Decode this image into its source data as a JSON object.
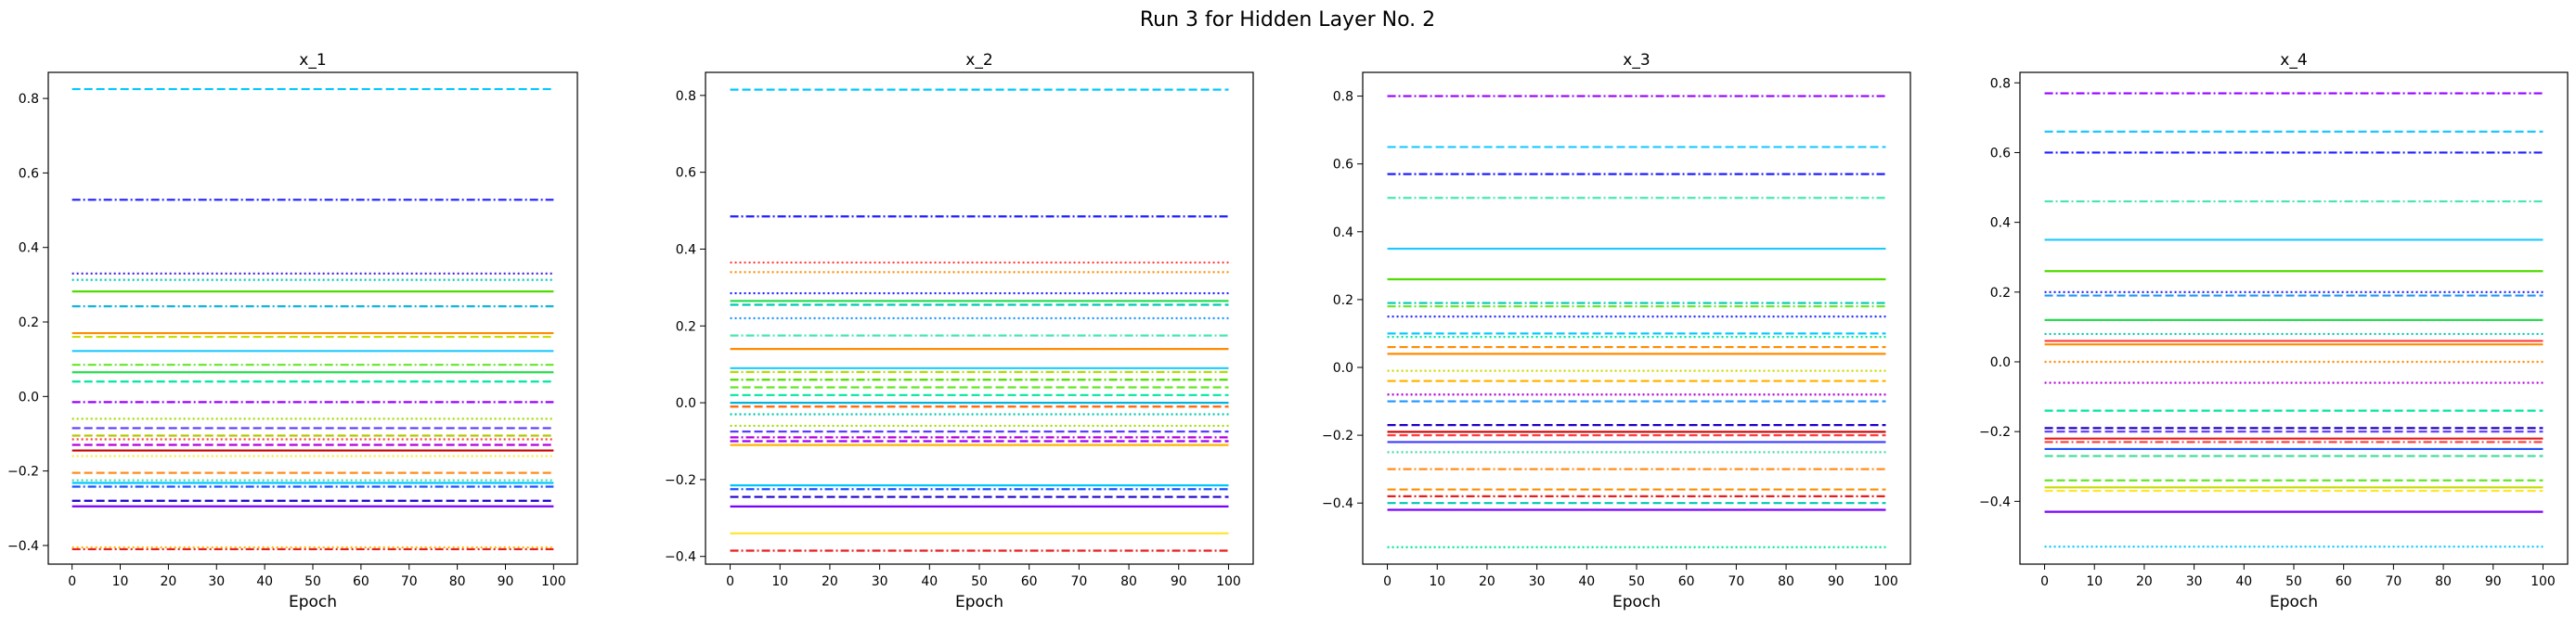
{
  "figure": {
    "title": "Run 3 for Hidden Layer No. 2"
  },
  "chart_data": [
    {
      "type": "line",
      "title": "x_1",
      "xlabel": "Epoch",
      "ylabel": "",
      "xlim": [
        0,
        100
      ],
      "ylim": [
        -0.45,
        0.87
      ],
      "x_ticks": [
        0,
        10,
        20,
        30,
        40,
        50,
        60,
        70,
        80,
        90,
        100
      ],
      "y_ticks": [
        -0.4,
        -0.2,
        0.0,
        0.2,
        0.4,
        0.6,
        0.8
      ],
      "y_tick_labels": [
        "−0.4",
        "−0.2",
        "0.0",
        "0.2",
        "0.4",
        "0.6",
        "0.8"
      ],
      "grid": false,
      "series": [
        {
          "value": 0.825,
          "color": "#00c8ff",
          "style": "dashed"
        },
        {
          "value": 0.528,
          "color": "#1e1eff",
          "style": "dashdot"
        },
        {
          "value": 0.33,
          "color": "#3c1edc",
          "style": "dotted"
        },
        {
          "value": 0.313,
          "color": "#00c8b4",
          "style": "dotted"
        },
        {
          "value": 0.282,
          "color": "#50dc00",
          "style": "solid"
        },
        {
          "value": 0.242,
          "color": "#14b4dc",
          "style": "dashdot"
        },
        {
          "value": 0.17,
          "color": "#ff8c00",
          "style": "solid"
        },
        {
          "value": 0.16,
          "color": "#c8dc00",
          "style": "dashed"
        },
        {
          "value": 0.122,
          "color": "#1ec8ff",
          "style": "solid"
        },
        {
          "value": 0.085,
          "color": "#64e628",
          "style": "dashdot"
        },
        {
          "value": 0.065,
          "color": "#28dc50",
          "style": "solid"
        },
        {
          "value": 0.04,
          "color": "#00e6a0",
          "style": "dashed"
        },
        {
          "value": -0.015,
          "color": "#9600ff",
          "style": "dashdot"
        },
        {
          "value": -0.06,
          "color": "#a0dc00",
          "style": "dotted"
        },
        {
          "value": -0.085,
          "color": "#5a3cff",
          "style": "dashed"
        },
        {
          "value": -0.105,
          "color": "#b4c800",
          "style": "dashed"
        },
        {
          "value": -0.115,
          "color": "#ff3c3c",
          "style": "dotted"
        },
        {
          "value": -0.13,
          "color": "#b400dc",
          "style": "dashed"
        },
        {
          "value": -0.145,
          "color": "#c80000",
          "style": "solid"
        },
        {
          "value": -0.16,
          "color": "#ffe632",
          "style": "dotted"
        },
        {
          "value": -0.205,
          "color": "#ff8c1e",
          "style": "dashed"
        },
        {
          "value": -0.225,
          "color": "#46dca0",
          "style": "dotted"
        },
        {
          "value": -0.232,
          "color": "#00c8ff",
          "style": "solid"
        },
        {
          "value": -0.242,
          "color": "#1e50ff",
          "style": "dashdot"
        },
        {
          "value": -0.28,
          "color": "#1e00c8",
          "style": "dashed"
        },
        {
          "value": -0.295,
          "color": "#7800ff",
          "style": "solid"
        },
        {
          "value": -0.41,
          "color": "#e61e1e",
          "style": "dashdot"
        },
        {
          "value": -0.405,
          "color": "#ffb400",
          "style": "dotted"
        }
      ]
    },
    {
      "type": "line",
      "title": "x_2",
      "xlabel": "Epoch",
      "ylabel": "",
      "xlim": [
        0,
        100
      ],
      "ylim": [
        -0.42,
        0.86
      ],
      "x_ticks": [
        0,
        10,
        20,
        30,
        40,
        50,
        60,
        70,
        80,
        90,
        100
      ],
      "y_ticks": [
        -0.4,
        -0.2,
        0.0,
        0.2,
        0.4,
        0.6,
        0.8
      ],
      "y_tick_labels": [
        "−0.4",
        "−0.2",
        "0.0",
        "0.2",
        "0.4",
        "0.6",
        "0.8"
      ],
      "grid": false,
      "series": [
        {
          "value": 0.815,
          "color": "#00c8ff",
          "style": "dashed"
        },
        {
          "value": 0.485,
          "color": "#1e1eff",
          "style": "dashdot"
        },
        {
          "value": 0.365,
          "color": "#ff3c3c",
          "style": "dotted"
        },
        {
          "value": 0.34,
          "color": "#ff8c00",
          "style": "dotted"
        },
        {
          "value": 0.285,
          "color": "#1e1eff",
          "style": "dotted"
        },
        {
          "value": 0.265,
          "color": "#28dc50",
          "style": "solid"
        },
        {
          "value": 0.255,
          "color": "#00c8b4",
          "style": "dashed"
        },
        {
          "value": 0.22,
          "color": "#1e96ff",
          "style": "dotted"
        },
        {
          "value": 0.175,
          "color": "#46e6b4",
          "style": "dashdot"
        },
        {
          "value": 0.14,
          "color": "#ff8c00",
          "style": "solid"
        },
        {
          "value": 0.09,
          "color": "#1ec8ff",
          "style": "solid"
        },
        {
          "value": 0.08,
          "color": "#b4dc00",
          "style": "dashdot"
        },
        {
          "value": 0.06,
          "color": "#50dc00",
          "style": "dashdot"
        },
        {
          "value": 0.04,
          "color": "#64e628",
          "style": "dashed"
        },
        {
          "value": 0.02,
          "color": "#00e6a0",
          "style": "dashed"
        },
        {
          "value": 0.0,
          "color": "#00b4dc",
          "style": "solid"
        },
        {
          "value": -0.01,
          "color": "#ff6400",
          "style": "dashed"
        },
        {
          "value": -0.03,
          "color": "#00c8b4",
          "style": "dotted"
        },
        {
          "value": -0.06,
          "color": "#a0dc00",
          "style": "dotted"
        },
        {
          "value": -0.075,
          "color": "#5a3cff",
          "style": "dashed"
        },
        {
          "value": -0.09,
          "color": "#b400dc",
          "style": "dashdot"
        },
        {
          "value": -0.1,
          "color": "#9600ff",
          "style": "dashed"
        },
        {
          "value": -0.11,
          "color": "#ffb400",
          "style": "solid"
        },
        {
          "value": -0.215,
          "color": "#00c8ff",
          "style": "solid"
        },
        {
          "value": -0.225,
          "color": "#1e50ff",
          "style": "dashdot"
        },
        {
          "value": -0.245,
          "color": "#1e00c8",
          "style": "dashed"
        },
        {
          "value": -0.27,
          "color": "#7800ff",
          "style": "solid"
        },
        {
          "value": -0.34,
          "color": "#ffe632",
          "style": "solid"
        },
        {
          "value": -0.385,
          "color": "#e61e1e",
          "style": "dashdot"
        }
      ]
    },
    {
      "type": "line",
      "title": "x_3",
      "xlabel": "Epoch",
      "ylabel": "",
      "xlim": [
        0,
        100
      ],
      "ylim": [
        -0.58,
        0.87
      ],
      "x_ticks": [
        0,
        10,
        20,
        30,
        40,
        50,
        60,
        70,
        80,
        90,
        100
      ],
      "y_ticks": [
        -0.4,
        -0.2,
        0.0,
        0.2,
        0.4,
        0.6,
        0.8
      ],
      "y_tick_labels": [
        "−0.4",
        "−0.2",
        "0.0",
        "0.2",
        "0.4",
        "0.6",
        "0.8"
      ],
      "grid": false,
      "series": [
        {
          "value": 0.8,
          "color": "#9600ff",
          "style": "dashdot"
        },
        {
          "value": 0.65,
          "color": "#1ec8ff",
          "style": "dashed"
        },
        {
          "value": 0.57,
          "color": "#1e1eff",
          "style": "dashdot"
        },
        {
          "value": 0.5,
          "color": "#46e6b4",
          "style": "dashdot"
        },
        {
          "value": 0.35,
          "color": "#1ec8ff",
          "style": "solid"
        },
        {
          "value": 0.26,
          "color": "#50dc00",
          "style": "solid"
        },
        {
          "value": 0.19,
          "color": "#00c8b4",
          "style": "dashdot"
        },
        {
          "value": 0.18,
          "color": "#64e628",
          "style": "dashdot"
        },
        {
          "value": 0.15,
          "color": "#1e1eff",
          "style": "dotted"
        },
        {
          "value": 0.1,
          "color": "#00c8ff",
          "style": "dashed"
        },
        {
          "value": 0.09,
          "color": "#00e6a0",
          "style": "dotted"
        },
        {
          "value": 0.06,
          "color": "#ff8c00",
          "style": "dashed"
        },
        {
          "value": 0.04,
          "color": "#ff8c00",
          "style": "solid"
        },
        {
          "value": -0.01,
          "color": "#c8dc00",
          "style": "dotted"
        },
        {
          "value": -0.04,
          "color": "#ffb400",
          "style": "dashed"
        },
        {
          "value": -0.08,
          "color": "#b400dc",
          "style": "dotted"
        },
        {
          "value": -0.1,
          "color": "#1e96ff",
          "style": "dashed"
        },
        {
          "value": -0.17,
          "color": "#1e00c8",
          "style": "dashed"
        },
        {
          "value": -0.19,
          "color": "#c80000",
          "style": "solid"
        },
        {
          "value": -0.2,
          "color": "#ff3c3c",
          "style": "dashed"
        },
        {
          "value": -0.22,
          "color": "#3c3cff",
          "style": "solid"
        },
        {
          "value": -0.25,
          "color": "#46dca0",
          "style": "dotted"
        },
        {
          "value": -0.3,
          "color": "#ff8c1e",
          "style": "dashdot"
        },
        {
          "value": -0.36,
          "color": "#ff8c00",
          "style": "dashed"
        },
        {
          "value": -0.38,
          "color": "#e61e1e",
          "style": "dashdot"
        },
        {
          "value": -0.4,
          "color": "#00c8b4",
          "style": "dashed"
        },
        {
          "value": -0.42,
          "color": "#7800ff",
          "style": "solid"
        },
        {
          "value": -0.53,
          "color": "#00e6a0",
          "style": "dotted"
        }
      ]
    },
    {
      "type": "line",
      "title": "x_4",
      "xlabel": "Epoch",
      "ylabel": "",
      "xlim": [
        0,
        100
      ],
      "ylim": [
        -0.58,
        0.83
      ],
      "x_ticks": [
        0,
        10,
        20,
        30,
        40,
        50,
        60,
        70,
        80,
        90,
        100
      ],
      "y_ticks": [
        -0.4,
        -0.2,
        0.0,
        0.2,
        0.4,
        0.6,
        0.8
      ],
      "y_tick_labels": [
        "−0.4",
        "−0.2",
        "0.0",
        "0.2",
        "0.4",
        "0.6",
        "0.8"
      ],
      "grid": false,
      "series": [
        {
          "value": 0.77,
          "color": "#9600ff",
          "style": "dashdot"
        },
        {
          "value": 0.66,
          "color": "#1ec8ff",
          "style": "dashed"
        },
        {
          "value": 0.6,
          "color": "#1e1eff",
          "style": "dashdot"
        },
        {
          "value": 0.46,
          "color": "#46e6b4",
          "style": "dashdot"
        },
        {
          "value": 0.35,
          "color": "#1ec8ff",
          "style": "solid"
        },
        {
          "value": 0.26,
          "color": "#50dc00",
          "style": "solid"
        },
        {
          "value": 0.2,
          "color": "#1e1eff",
          "style": "dotted"
        },
        {
          "value": 0.19,
          "color": "#1e96ff",
          "style": "dashed"
        },
        {
          "value": 0.12,
          "color": "#28dc50",
          "style": "solid"
        },
        {
          "value": 0.08,
          "color": "#00c8b4",
          "style": "dotted"
        },
        {
          "value": 0.06,
          "color": "#ff3c3c",
          "style": "solid"
        },
        {
          "value": 0.05,
          "color": "#ff8c00",
          "style": "solid"
        },
        {
          "value": 0.0,
          "color": "#ff8c00",
          "style": "dotted"
        },
        {
          "value": -0.06,
          "color": "#b400dc",
          "style": "dotted"
        },
        {
          "value": -0.14,
          "color": "#00e6a0",
          "style": "dashed"
        },
        {
          "value": -0.19,
          "color": "#1e00c8",
          "style": "dashed"
        },
        {
          "value": -0.2,
          "color": "#5a3cff",
          "style": "dashed"
        },
        {
          "value": -0.22,
          "color": "#e61e1e",
          "style": "solid"
        },
        {
          "value": -0.23,
          "color": "#ff3c3c",
          "style": "dashdot"
        },
        {
          "value": -0.25,
          "color": "#1e50ff",
          "style": "solid"
        },
        {
          "value": -0.27,
          "color": "#46dca0",
          "style": "dashed"
        },
        {
          "value": -0.34,
          "color": "#64e628",
          "style": "dashed"
        },
        {
          "value": -0.36,
          "color": "#c8dc00",
          "style": "solid"
        },
        {
          "value": -0.37,
          "color": "#ffe632",
          "style": "dashed"
        },
        {
          "value": -0.43,
          "color": "#7800ff",
          "style": "solid"
        },
        {
          "value": -0.53,
          "color": "#00c8ff",
          "style": "dotted"
        }
      ]
    }
  ]
}
